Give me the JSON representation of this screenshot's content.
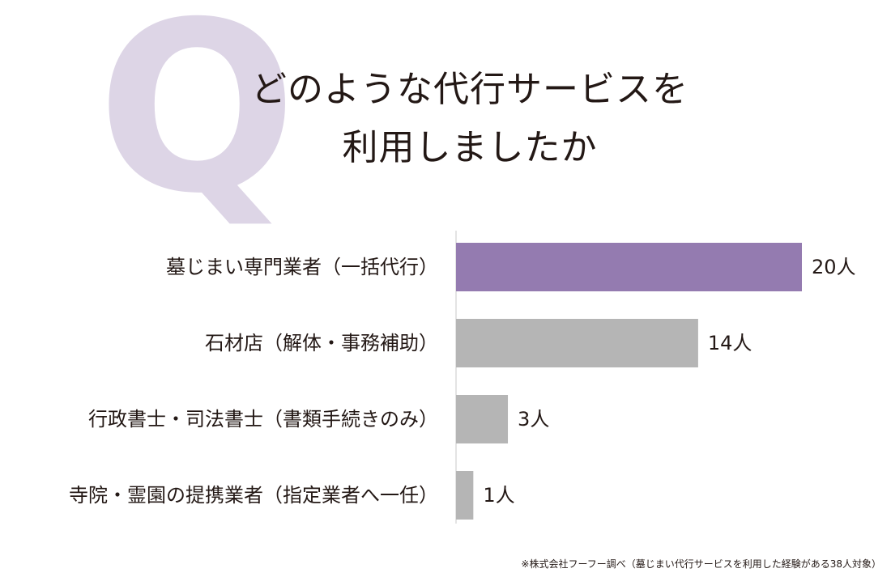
{
  "hero": {
    "q_mark": "Q",
    "question_line1": "どのような代行サービスを",
    "question_line2": "利用しましたか"
  },
  "chart_data": {
    "type": "bar",
    "orientation": "horizontal",
    "categories": [
      "墓じまい専門業者（一括代行）",
      "石材店（解体・事務補助）",
      "行政書士・司法書士（書類手続きのみ）",
      "寺院・霊園の提携業者（指定業者へ一任）"
    ],
    "values": [
      20,
      14,
      3,
      1
    ],
    "value_labels": [
      "20人",
      "14人",
      "3人",
      "1人"
    ],
    "colors": [
      "#947bb0",
      "#b5b5b5",
      "#b5b5b5",
      "#b5b5b5"
    ],
    "xlim": [
      0,
      20
    ],
    "grid": false,
    "legend": "none"
  },
  "footer": {
    "source": "※株式会社フーフー調べ（墓じまい代行サービスを利用した経験がある38人対象）"
  },
  "colors": {
    "q_mark": "#ddd5e6",
    "text": "#231815",
    "axis": "#c8c8c8"
  }
}
